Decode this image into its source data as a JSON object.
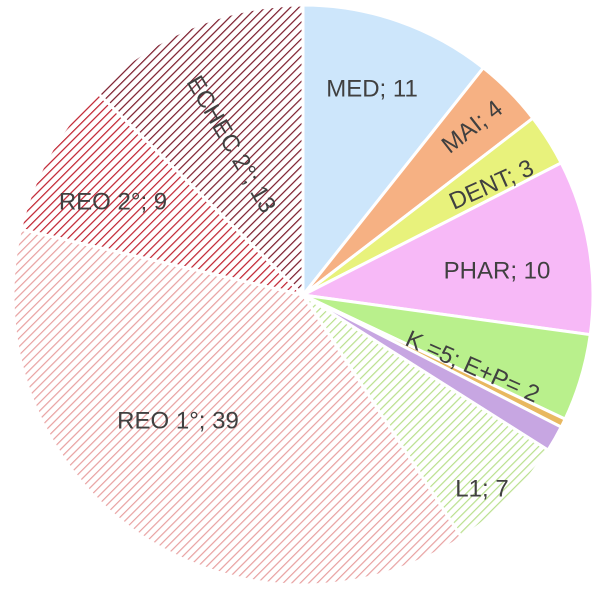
{
  "chart_data": {
    "type": "pie",
    "categories": [
      "MED; 11",
      "MAI; 4",
      "DENT; 3",
      "PHAR; 10",
      "K =5; E+P= 2",
      null,
      null,
      "L1; 7",
      "REO 1°; 39",
      "REO 2°; 9",
      "ECHEC 2°; 13"
    ],
    "values": [
      11,
      4,
      3,
      10,
      5,
      0.5,
      1.5,
      7,
      39,
      9,
      13
    ],
    "colors": [
      "#cde6fb",
      "#f6b183",
      "#e8f27c",
      "#f7b9f7",
      "#b9f08c",
      "#e8b860",
      "#c7a6e2",
      "#b9e08c",
      "#e8a0a0",
      "#c0202e",
      "#7a1a2a"
    ],
    "hatched": [
      false,
      false,
      false,
      false,
      false,
      false,
      false,
      true,
      true,
      true,
      true
    ]
  }
}
